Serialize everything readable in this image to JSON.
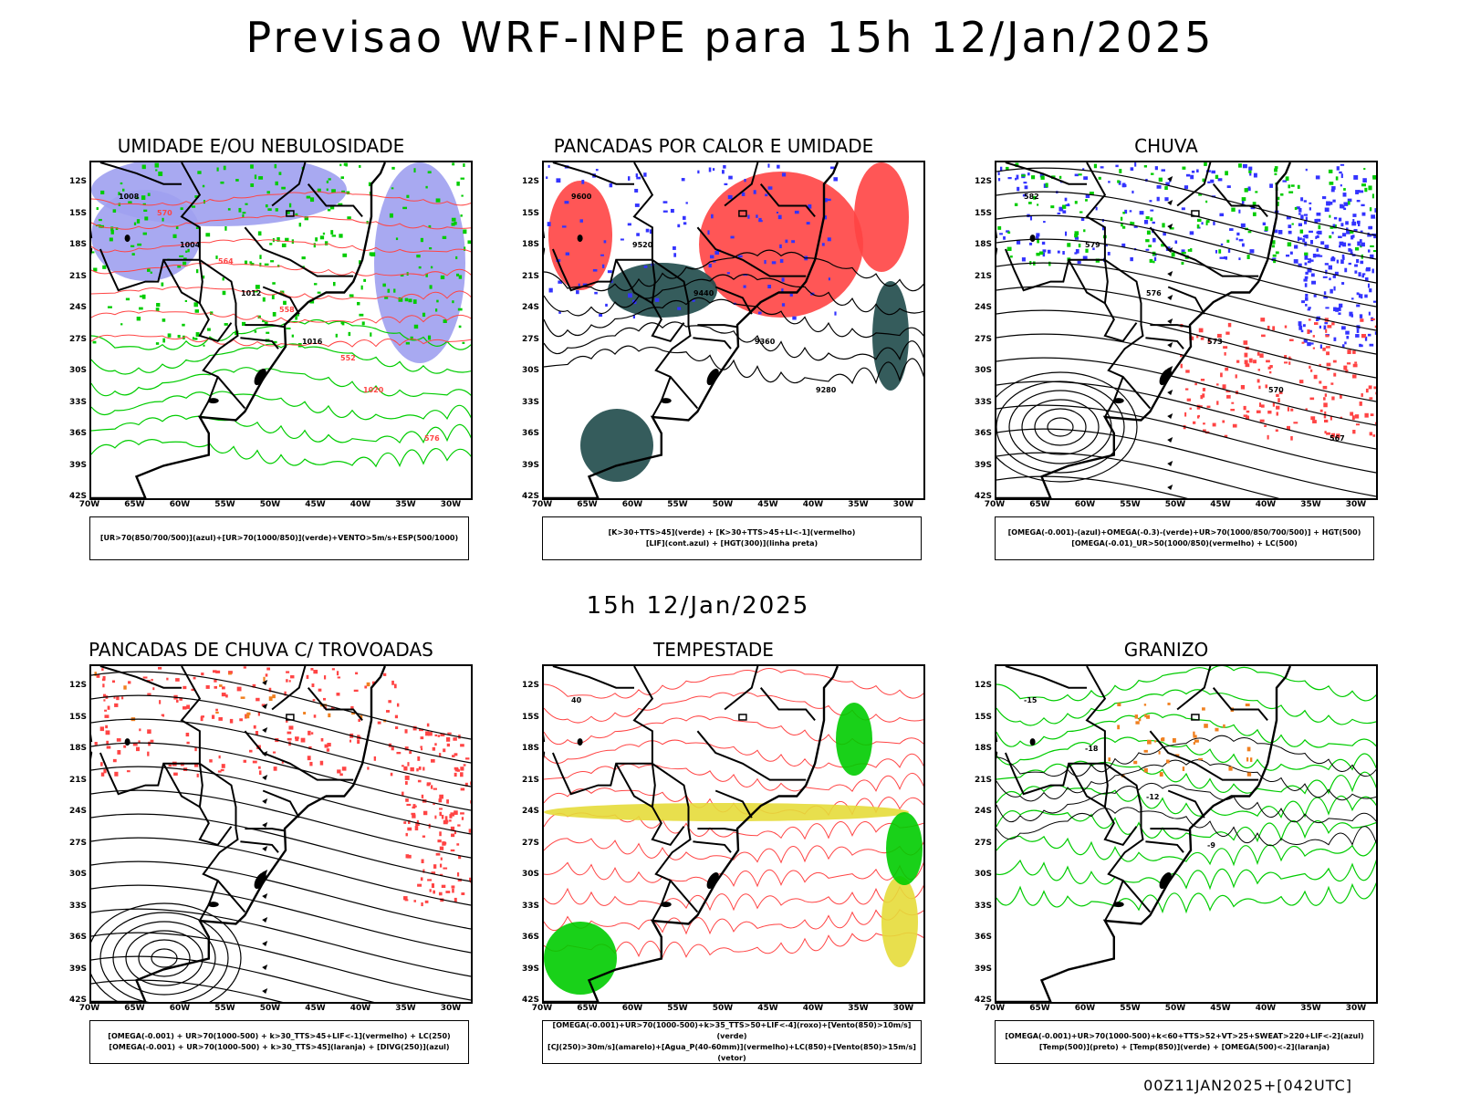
{
  "title": "Previsao WRF-INPE  para 15h 12/Jan/2025",
  "middle_time": "15h 12/Jan/2025",
  "footer": "00Z11JAN2025+[042UTC]",
  "axes": {
    "lat_labels": [
      "12S",
      "15S",
      "18S",
      "21S",
      "24S",
      "27S",
      "30S",
      "33S",
      "36S",
      "39S",
      "42S"
    ],
    "lon_labels": [
      "70W",
      "65W",
      "60W",
      "55W",
      "50W",
      "45W",
      "40W",
      "35W",
      "30W"
    ]
  },
  "colors": {
    "blue": "#3333ff",
    "green": "#00cc00",
    "red": "#ff4444",
    "darkgreen": "#1f4a4a",
    "yellow": "#e6dc3a",
    "orange": "#f08020",
    "lavender": "#9ea0f0"
  },
  "panels": [
    {
      "title": "UMIDADE E/OU NEBULOSIDADE",
      "legend": [
        "[UR>70(850/700/500)](azul)+[UR>70(1000/850)](verde)+VENTO>5m/s+ESP(500/1000)"
      ],
      "labels": [
        "1008",
        "1004",
        "1012",
        "1016",
        "1020",
        "576",
        "570",
        "564",
        "558",
        "552"
      ]
    },
    {
      "title": "PANCADAS POR CALOR E UMIDADE",
      "legend": [
        "[K>30+TTS>45](verde) + [K>30+TTS>45+LI<-1](vermelho)",
        "[LIF](cont.azul) + [HGT(300)](linha preta)"
      ],
      "labels": [
        "9600",
        "9520",
        "9440",
        "9360",
        "9280"
      ]
    },
    {
      "title": "CHUVA",
      "legend": [
        "[OMEGA(-0.001)-(azul)+OMEGA(-0.3)-(verde)+UR>70(1000/850/700/500)] + HGT(500)",
        "[OMEGA(-0.01)_UR>50(1000/850)(vermelho) + LC(500)"
      ],
      "labels": [
        "582",
        "579",
        "576",
        "573",
        "570",
        "567"
      ]
    },
    {
      "title": "PANCADAS DE CHUVA C/ TROVOADAS",
      "legend": [
        "[OMEGA(-0.001) + UR>70(1000-500) + k>30_TTS>45+LIF<-1](vermelho) + LC(250)",
        "[OMEGA(-0.001) + UR>70(1000-500) + k>30_TTS>45](laranja) + [DIVG(250)](azul)"
      ],
      "labels": []
    },
    {
      "title": "TEMPESTADE",
      "legend": [
        "[OMEGA(-0.001)+UR>70(1000-500)+k>35_TTS>50+LIF<-4](roxo)+[Vento(850)>10m/s](verde)",
        "[CJ(250)>30m/s](amarelo)+[Agua_P(40-60mm)](vermelho)+LC(850)+[Vento(850)>15m/s](vetor)"
      ],
      "labels": [
        "40"
      ]
    },
    {
      "title": "GRANIZO",
      "legend": [
        "[OMEGA(-0.001)+UR>70(1000-500)+k<60+TTS>52+VT>25+SWEAT>220+LIF<-2](azul)",
        "[Temp(500)](preto) + [Temp(850)](verde) + [OMEGA(500)<-2](laranja)"
      ],
      "labels": [
        "-15",
        "-18",
        "-12",
        "-9"
      ]
    }
  ]
}
